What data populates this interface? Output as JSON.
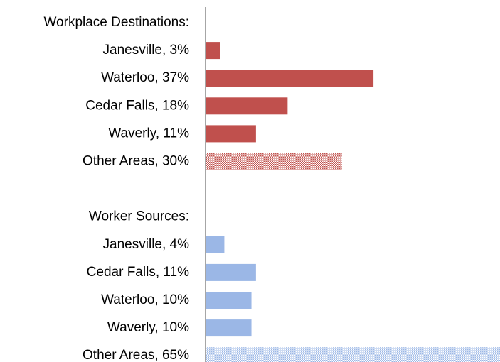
{
  "chart_data": {
    "type": "hbar",
    "categories": [
      "Workplace Destinations:",
      "Janesville, 3%",
      "Waterloo, 37%",
      "Cedar Falls, 18%",
      "Waverly, 11%",
      "Other Areas, 30%",
      null,
      "Worker Sources:",
      "Janesville, 4%",
      "Cedar Falls, 11%",
      "Waterloo, 10%",
      "Waverly, 10%",
      "Other Areas, 65%"
    ],
    "values": [
      null,
      3,
      37,
      18,
      11,
      30,
      null,
      null,
      4,
      11,
      10,
      10,
      65
    ],
    "colors": [
      null,
      "#c0504d",
      "#c0504d",
      "#c0504d",
      "#c0504d",
      "#c0504d",
      null,
      null,
      "#9bb7e6",
      "#9bb7e6",
      "#9bb7e6",
      "#9bb7e6",
      "#9bb7e6"
    ],
    "hatched": [
      false,
      false,
      false,
      false,
      false,
      true,
      false,
      false,
      false,
      false,
      false,
      false,
      true
    ],
    "xlim": [
      0,
      65
    ]
  }
}
